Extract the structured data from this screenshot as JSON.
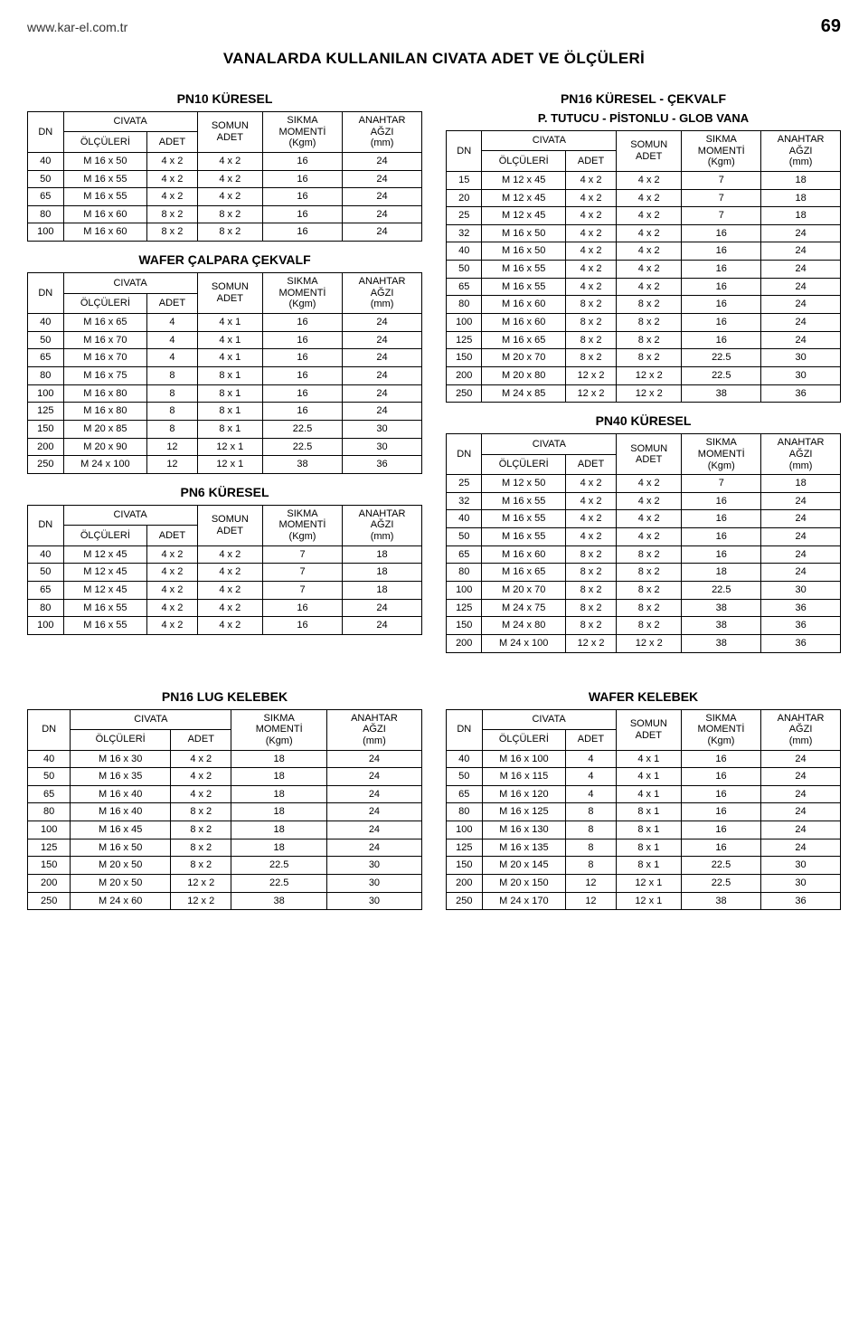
{
  "header": {
    "url": "www.kar-el.com.tr",
    "page_number": "69"
  },
  "page_title": "VANALARDA KULLANILAN CIVATA ADET VE ÖLÇÜLERİ",
  "col_headers": {
    "dn": "DN",
    "civata": "CIVATA",
    "olculeri": "ÖLÇÜLERİ",
    "adet": "ADET",
    "somun_adet": "SOMUN\nADET",
    "sikma": "SIKMA\nMOMENTİ\n(Kgm)",
    "anahtar": "ANAHTAR\nAĞZI\n(mm)"
  },
  "tables": {
    "pn10_kuresel": {
      "title": "PN10 KÜRESEL",
      "has_somun": true,
      "rows": [
        [
          "40",
          "M 16 x 50",
          "4 x 2",
          "4 x 2",
          "16",
          "24"
        ],
        [
          "50",
          "M 16 x 55",
          "4 x 2",
          "4 x 2",
          "16",
          "24"
        ],
        [
          "65",
          "M 16 x 55",
          "4 x 2",
          "4 x 2",
          "16",
          "24"
        ],
        [
          "80",
          "M 16 x 60",
          "8 x 2",
          "8 x 2",
          "16",
          "24"
        ],
        [
          "100",
          "M 16 x 60",
          "8 x 2",
          "8 x 2",
          "16",
          "24"
        ]
      ]
    },
    "wafer_calpara": {
      "title": "WAFER ÇALPARA ÇEKVALF",
      "has_somun": true,
      "rows": [
        [
          "40",
          "M 16 x 65",
          "4",
          "4 x 1",
          "16",
          "24"
        ],
        [
          "50",
          "M 16 x 70",
          "4",
          "4 x 1",
          "16",
          "24"
        ],
        [
          "65",
          "M 16 x 70",
          "4",
          "4 x 1",
          "16",
          "24"
        ],
        [
          "80",
          "M 16 x 75",
          "8",
          "8 x 1",
          "16",
          "24"
        ],
        [
          "100",
          "M 16 x 80",
          "8",
          "8 x 1",
          "16",
          "24"
        ],
        [
          "125",
          "M 16 x 80",
          "8",
          "8 x 1",
          "16",
          "24"
        ],
        [
          "150",
          "M 20 x 85",
          "8",
          "8 x 1",
          "22.5",
          "30"
        ],
        [
          "200",
          "M 20 x 90",
          "12",
          "12 x 1",
          "22.5",
          "30"
        ],
        [
          "250",
          "M 24 x 100",
          "12",
          "12 x 1",
          "38",
          "36"
        ]
      ]
    },
    "pn6_kuresel": {
      "title": "PN6 KÜRESEL",
      "has_somun": true,
      "rows": [
        [
          "40",
          "M 12 x 45",
          "4 x 2",
          "4 x 2",
          "7",
          "18"
        ],
        [
          "50",
          "M 12 x 45",
          "4 x 2",
          "4 x 2",
          "7",
          "18"
        ],
        [
          "65",
          "M 12 x 45",
          "4 x 2",
          "4 x 2",
          "7",
          "18"
        ],
        [
          "80",
          "M 16 x 55",
          "4 x 2",
          "4 x 2",
          "16",
          "24"
        ],
        [
          "100",
          "M 16 x 55",
          "4 x 2",
          "4 x 2",
          "16",
          "24"
        ]
      ]
    },
    "pn16_kuresel_cekvalf": {
      "title": "PN16 KÜRESEL - ÇEKVALF",
      "subtitle": "P. TUTUCU - PİSTONLU - GLOB VANA",
      "has_somun": true,
      "rows": [
        [
          "15",
          "M 12 x 45",
          "4 x 2",
          "4 x 2",
          "7",
          "18"
        ],
        [
          "20",
          "M 12 x 45",
          "4 x 2",
          "4 x 2",
          "7",
          "18"
        ],
        [
          "25",
          "M 12 x 45",
          "4 x 2",
          "4 x 2",
          "7",
          "18"
        ],
        [
          "32",
          "M 16 x 50",
          "4 x 2",
          "4 x 2",
          "16",
          "24"
        ],
        [
          "40",
          "M 16 x 50",
          "4 x 2",
          "4 x 2",
          "16",
          "24"
        ],
        [
          "50",
          "M 16 x 55",
          "4 x 2",
          "4 x 2",
          "16",
          "24"
        ],
        [
          "65",
          "M 16 x 55",
          "4 x 2",
          "4 x 2",
          "16",
          "24"
        ],
        [
          "80",
          "M 16 x 60",
          "8 x 2",
          "8 x 2",
          "16",
          "24"
        ],
        [
          "100",
          "M 16 x 60",
          "8 x 2",
          "8 x 2",
          "16",
          "24"
        ],
        [
          "125",
          "M 16 x 65",
          "8 x 2",
          "8 x 2",
          "16",
          "24"
        ],
        [
          "150",
          "M 20 x 70",
          "8 x 2",
          "8 x 2",
          "22.5",
          "30"
        ],
        [
          "200",
          "M 20 x 80",
          "12 x 2",
          "12 x 2",
          "22.5",
          "30"
        ],
        [
          "250",
          "M 24 x 85",
          "12 x 2",
          "12 x 2",
          "38",
          "36"
        ]
      ]
    },
    "pn40_kuresel": {
      "title": "PN40 KÜRESEL",
      "has_somun": true,
      "rows": [
        [
          "25",
          "M 12 x 50",
          "4 x 2",
          "4 x 2",
          "7",
          "18"
        ],
        [
          "32",
          "M 16 x 55",
          "4 x 2",
          "4 x 2",
          "16",
          "24"
        ],
        [
          "40",
          "M 16 x 55",
          "4 x 2",
          "4 x 2",
          "16",
          "24"
        ],
        [
          "50",
          "M 16 x 55",
          "4 x 2",
          "4 x 2",
          "16",
          "24"
        ],
        [
          "65",
          "M 16 x 60",
          "8 x 2",
          "8 x 2",
          "16",
          "24"
        ],
        [
          "80",
          "M 16 x 65",
          "8 x 2",
          "8 x 2",
          "18",
          "24"
        ],
        [
          "100",
          "M 20 x 70",
          "8 x 2",
          "8 x 2",
          "22.5",
          "30"
        ],
        [
          "125",
          "M 24 x 75",
          "8 x 2",
          "8 x 2",
          "38",
          "36"
        ],
        [
          "150",
          "M 24 x 80",
          "8 x 2",
          "8 x 2",
          "38",
          "36"
        ],
        [
          "200",
          "M 24 x 100",
          "12 x 2",
          "12 x 2",
          "38",
          "36"
        ]
      ]
    },
    "pn16_lug_kelebek": {
      "title": "PN16 LUG KELEBEK",
      "has_somun": false,
      "rows": [
        [
          "40",
          "M 16 x 30",
          "4 x 2",
          "18",
          "24"
        ],
        [
          "50",
          "M 16 x 35",
          "4 x 2",
          "18",
          "24"
        ],
        [
          "65",
          "M 16 x 40",
          "4 x 2",
          "18",
          "24"
        ],
        [
          "80",
          "M 16 x 40",
          "8 x 2",
          "18",
          "24"
        ],
        [
          "100",
          "M 16 x 45",
          "8 x 2",
          "18",
          "24"
        ],
        [
          "125",
          "M 16 x 50",
          "8 x 2",
          "18",
          "24"
        ],
        [
          "150",
          "M 20 x 50",
          "8 x 2",
          "22.5",
          "30"
        ],
        [
          "200",
          "M 20 x 50",
          "12 x 2",
          "22.5",
          "30"
        ],
        [
          "250",
          "M 24 x 60",
          "12 x 2",
          "38",
          "30"
        ]
      ]
    },
    "wafer_kelebek": {
      "title": "WAFER KELEBEK",
      "has_somun": true,
      "rows": [
        [
          "40",
          "M 16 x 100",
          "4",
          "4 x 1",
          "16",
          "24"
        ],
        [
          "50",
          "M 16 x 115",
          "4",
          "4 x 1",
          "16",
          "24"
        ],
        [
          "65",
          "M 16 x 120",
          "4",
          "4 x 1",
          "16",
          "24"
        ],
        [
          "80",
          "M 16 x 125",
          "8",
          "8 x 1",
          "16",
          "24"
        ],
        [
          "100",
          "M 16 x 130",
          "8",
          "8 x 1",
          "16",
          "24"
        ],
        [
          "125",
          "M 16 x 135",
          "8",
          "8 x 1",
          "16",
          "24"
        ],
        [
          "150",
          "M 20 x 145",
          "8",
          "8 x 1",
          "22.5",
          "30"
        ],
        [
          "200",
          "M 20 x 150",
          "12",
          "12 x 1",
          "22.5",
          "30"
        ],
        [
          "250",
          "M 24 x 170",
          "12",
          "12 x 1",
          "38",
          "36"
        ]
      ]
    }
  }
}
